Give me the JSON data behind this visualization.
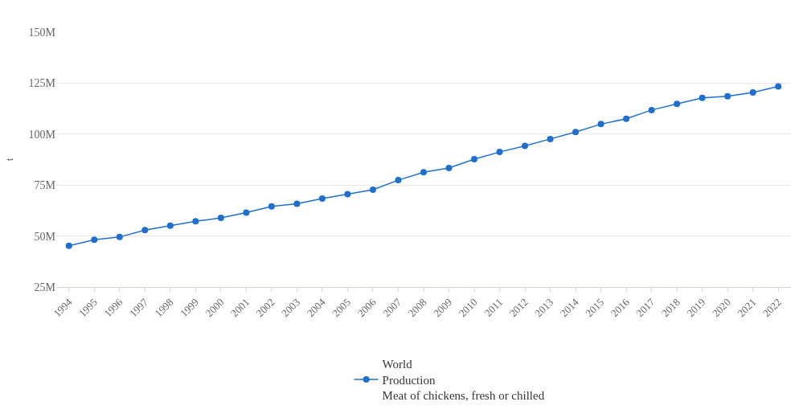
{
  "chart_data": {
    "type": "line",
    "ylabel": "t",
    "categories": [
      "1994",
      "1995",
      "1996",
      "1997",
      "1998",
      "1999",
      "2000",
      "2001",
      "2002",
      "2003",
      "2004",
      "2005",
      "2006",
      "2007",
      "2008",
      "2009",
      "2010",
      "2011",
      "2012",
      "2013",
      "2014",
      "2015",
      "2016",
      "2017",
      "2018",
      "2019",
      "2020",
      "2021",
      "2022"
    ],
    "series": [
      {
        "name": "World\nProduction\nMeat of chickens, fresh or chilled",
        "color": "#1f6fcf",
        "values": [
          45200000,
          48200000,
          49500000,
          52900000,
          55100000,
          57200000,
          58900000,
          61500000,
          64500000,
          65800000,
          68400000,
          70500000,
          72700000,
          77400000,
          81300000,
          83400000,
          87700000,
          91200000,
          94200000,
          97600000,
          101000000,
          104900000,
          107500000,
          111800000,
          114800000,
          117800000,
          118600000,
          120400000,
          123400000
        ]
      }
    ],
    "ylim": [
      25000000,
      150000000
    ],
    "yticks": [
      {
        "value": 25000000,
        "label": "25M"
      },
      {
        "value": 50000000,
        "label": "50M"
      },
      {
        "value": 75000000,
        "label": "75M"
      },
      {
        "value": 100000000,
        "label": "100M"
      },
      {
        "value": 125000000,
        "label": "125M"
      },
      {
        "value": 150000000,
        "label": "150M"
      }
    ],
    "grid": "y",
    "legend": "bottom",
    "marker": "circle",
    "line_style": "solid"
  }
}
